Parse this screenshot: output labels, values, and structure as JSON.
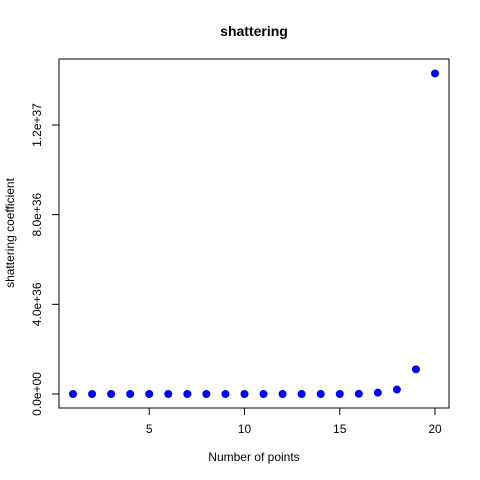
{
  "chart_data": {
    "type": "scatter",
    "title": "shattering",
    "xlabel": "Number of points",
    "ylabel": "shattering coefficient",
    "xlim": [
      1,
      20
    ],
    "ylim": [
      0,
      1.4e+37
    ],
    "x_ticks": [
      5,
      10,
      15,
      20
    ],
    "x_tick_labels": [
      "5",
      "10",
      "15",
      "20"
    ],
    "y_ticks": [
      0,
      4e+36,
      8e+36,
      1.2e+37
    ],
    "y_tick_labels": [
      "0.0e+00",
      "4.0e+36",
      "8.0e+36",
      "1.2e+37"
    ],
    "point_color": "#0000ff",
    "grid": false,
    "series": [
      {
        "x": [
          1,
          2,
          3,
          4,
          5,
          6,
          7,
          8,
          9,
          10,
          11,
          12,
          13,
          14,
          15,
          16,
          17,
          18,
          19,
          20
        ],
        "y": [
          0,
          0,
          0,
          0,
          0,
          0,
          0,
          0,
          0,
          0,
          0,
          0,
          0,
          0,
          0,
          1e+34,
          6e+34,
          2e+35,
          1.1e+36,
          1.43e+37
        ]
      }
    ]
  }
}
